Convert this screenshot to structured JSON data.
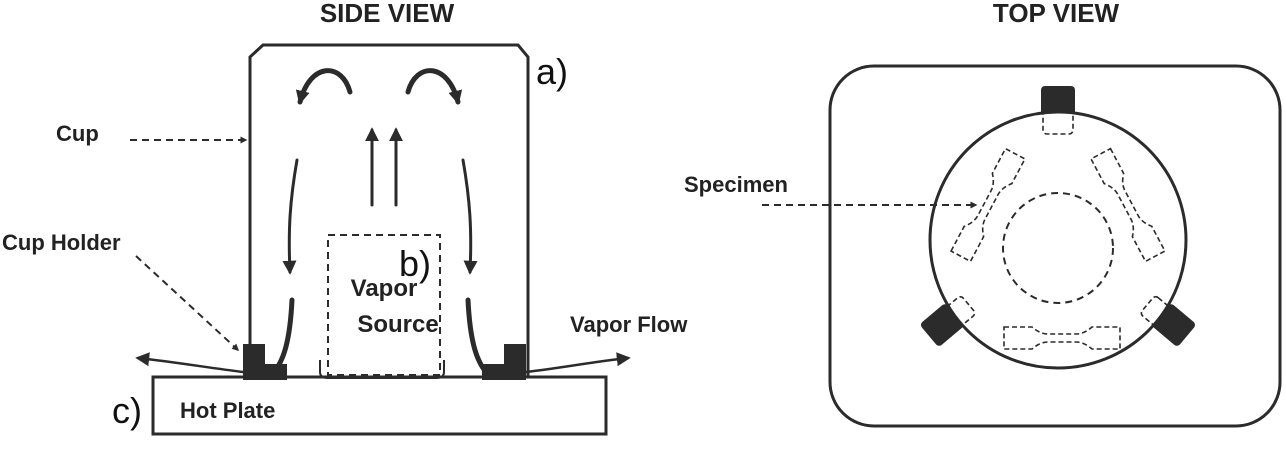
{
  "side_view": {
    "title": "SIDE VIEW",
    "cup_label": "Cup",
    "cup_holder_label": "Cup Holder",
    "vapor_source_line1": "Vapor",
    "vapor_source_line2": "Source",
    "vapor_flow_label": "Vapor Flow",
    "hot_plate_label": "Hot Plate",
    "tag_a": "a)",
    "tag_b": "b)",
    "tag_c": "c)"
  },
  "top_view": {
    "title": "TOP VIEW",
    "specimen_label": "Specimen"
  },
  "colors": {
    "line": "#2b2b2b",
    "background": "#ffffff"
  }
}
